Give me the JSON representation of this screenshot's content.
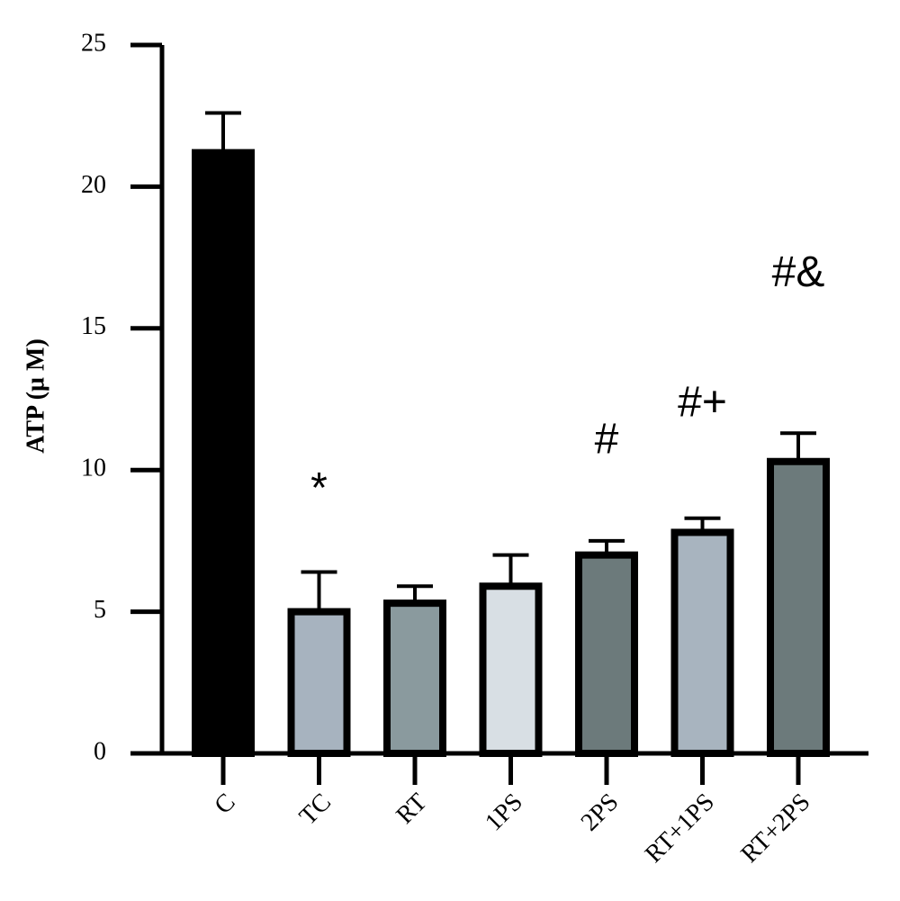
{
  "chart_data": {
    "type": "bar",
    "y_label": "ATP (µ M)",
    "categories": [
      "C",
      "TC",
      "RT",
      "1PS",
      "2PS",
      "RT+1PS",
      "RT+2PS"
    ],
    "values": [
      21.2,
      5.0,
      5.3,
      5.9,
      7.0,
      7.8,
      10.3
    ],
    "errors": [
      1.4,
      1.4,
      0.6,
      1.1,
      0.5,
      0.5,
      1.0
    ],
    "colors": [
      "#000000",
      "#a7b3bf",
      "#8a9a9e",
      "#d8dfe4",
      "#6c7a7b",
      "#a8b4bf",
      "#6c7a7b"
    ],
    "annotations": [
      null,
      "*",
      null,
      null,
      "#",
      "#+",
      "#&"
    ],
    "ylim": [
      0,
      25
    ],
    "yticks": [
      0,
      5,
      10,
      15,
      20,
      25
    ],
    "grid": false
  }
}
